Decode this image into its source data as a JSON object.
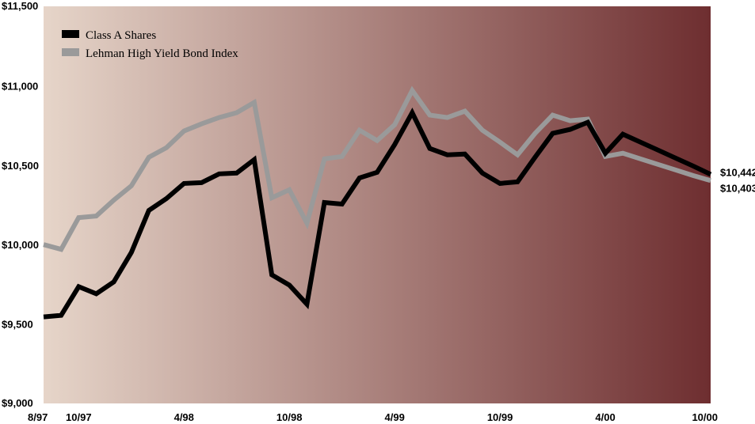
{
  "chart_data": {
    "type": "line",
    "title": "",
    "xlabel": "",
    "ylabel": "",
    "ylim": [
      9000,
      11500
    ],
    "y_ticks": [
      "$9,000",
      "$9,500",
      "$10,000",
      "$10,500",
      "$11,000",
      "$11,500"
    ],
    "y_tick_values": [
      9000,
      9500,
      10000,
      10500,
      11000,
      11500
    ],
    "x_ticks": [
      "8/97",
      "10/97",
      "4/98",
      "10/98",
      "4/99",
      "10/99",
      "4/00",
      "10/00"
    ],
    "x_tick_index": [
      0,
      2,
      8,
      14,
      20,
      26,
      32,
      38
    ],
    "x": [
      "8/97",
      "9/97",
      "10/97",
      "11/97",
      "12/97",
      "1/98",
      "2/98",
      "3/98",
      "4/98",
      "5/98",
      "6/98",
      "7/98",
      "8/98",
      "9/98",
      "10/98",
      "11/98",
      "12/98",
      "1/99",
      "2/99",
      "3/99",
      "4/99",
      "5/99",
      "6/99",
      "7/99",
      "8/99",
      "9/99",
      "10/99",
      "11/99",
      "12/99",
      "1/00",
      "2/00",
      "3/00",
      "4/00",
      "5/00",
      "6/00",
      "7/00",
      "8/00",
      "9/00",
      "10/00"
    ],
    "grid": false,
    "legend_position": "top-left",
    "background": {
      "from": "#e6d5c9",
      "to": "#6e2e30"
    },
    "series": [
      {
        "name": "Class A Shares",
        "color": "#000000",
        "end_label": "$10,442",
        "values": [
          9545,
          9555,
          9735,
          9690,
          9765,
          9950,
          10215,
          10290,
          10385,
          10390,
          10445,
          10450,
          10535,
          9810,
          9745,
          9625,
          10265,
          10255,
          10420,
          10455,
          10630,
          10830,
          10605,
          10565,
          10570,
          10450,
          10385,
          10395,
          10550,
          10700,
          10725,
          10770,
          10575,
          10695,
          10645,
          10595,
          10545,
          10495,
          10442
        ]
      },
      {
        "name": "Lehman High Yield Bond Index",
        "color": "#9a9a9a",
        "end_label": "$10,403",
        "values": [
          10000,
          9970,
          10170,
          10180,
          10280,
          10370,
          10550,
          10610,
          10715,
          10760,
          10800,
          10830,
          10895,
          10295,
          10345,
          10135,
          10540,
          10555,
          10720,
          10655,
          10755,
          10970,
          10815,
          10800,
          10840,
          10720,
          10645,
          10565,
          10700,
          10815,
          10780,
          10790,
          10555,
          10575,
          10540,
          10505,
          10470,
          10435,
          10403
        ]
      }
    ]
  }
}
